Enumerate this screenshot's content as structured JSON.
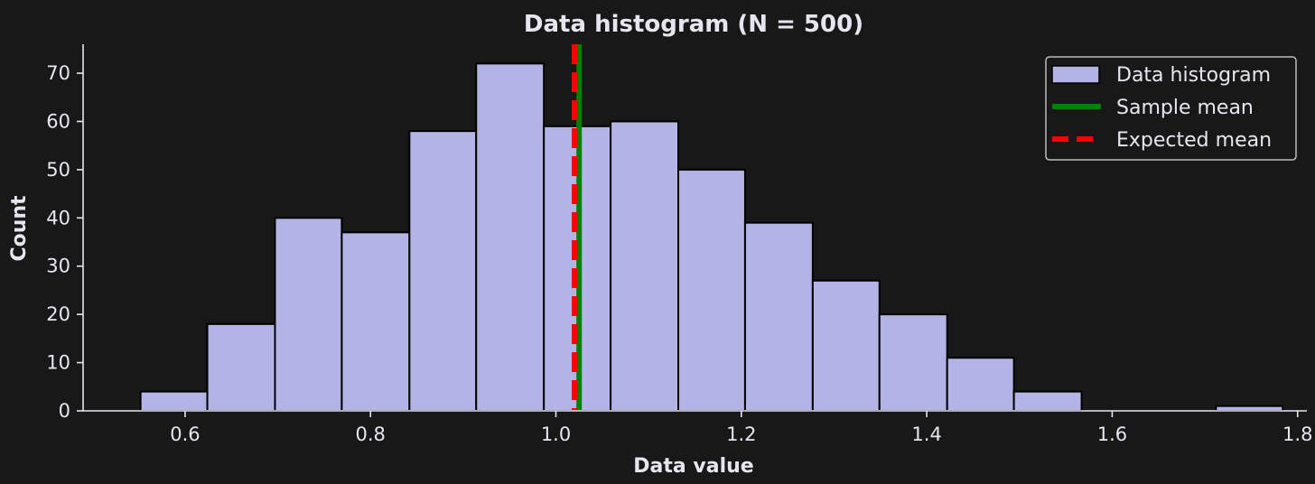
{
  "chart_data": {
    "type": "bar",
    "title": "Data histogram (N = 500)",
    "xlabel": "Data value",
    "ylabel": "Count",
    "xlim": [
      0.49,
      1.81
    ],
    "ylim": [
      0,
      76
    ],
    "xticks": [
      0.6,
      0.8,
      1.0,
      1.2,
      1.4,
      1.6,
      1.8
    ],
    "xtick_labels": [
      "0.6",
      "0.8",
      "1.0",
      "1.2",
      "1.4",
      "1.6",
      "1.8"
    ],
    "yticks": [
      0,
      10,
      20,
      30,
      40,
      50,
      60,
      70
    ],
    "ytick_labels": [
      "0",
      "10",
      "20",
      "30",
      "40",
      "50",
      "60",
      "70"
    ],
    "grid": false,
    "legend_position": "top-right",
    "bins": [
      {
        "x0": 0.552,
        "x1": 0.624,
        "count": 4
      },
      {
        "x0": 0.624,
        "x1": 0.697,
        "count": 18
      },
      {
        "x0": 0.697,
        "x1": 0.769,
        "count": 40
      },
      {
        "x0": 0.769,
        "x1": 0.842,
        "count": 37
      },
      {
        "x0": 0.842,
        "x1": 0.914,
        "count": 58
      },
      {
        "x0": 0.914,
        "x1": 0.987,
        "count": 72
      },
      {
        "x0": 0.987,
        "x1": 1.059,
        "count": 59
      },
      {
        "x0": 1.059,
        "x1": 1.132,
        "count": 60
      },
      {
        "x0": 1.132,
        "x1": 1.204,
        "count": 50
      },
      {
        "x0": 1.204,
        "x1": 1.277,
        "count": 39
      },
      {
        "x0": 1.277,
        "x1": 1.349,
        "count": 27
      },
      {
        "x0": 1.349,
        "x1": 1.422,
        "count": 20
      },
      {
        "x0": 1.422,
        "x1": 1.494,
        "count": 11
      },
      {
        "x0": 1.494,
        "x1": 1.567,
        "count": 4
      },
      {
        "x0": 1.567,
        "x1": 1.639,
        "count": 0
      },
      {
        "x0": 1.639,
        "x1": 1.712,
        "count": 0
      },
      {
        "x0": 1.712,
        "x1": 1.784,
        "count": 1
      }
    ],
    "sample_mean": 1.025,
    "expected_mean": 1.02,
    "series": [
      {
        "name": "Data histogram",
        "color": "#b3b3e6",
        "style": "bar"
      },
      {
        "name": "Sample mean",
        "color": "#008000",
        "style": "solid"
      },
      {
        "name": "Expected mean",
        "color": "#ff0000",
        "style": "dashed"
      }
    ]
  }
}
